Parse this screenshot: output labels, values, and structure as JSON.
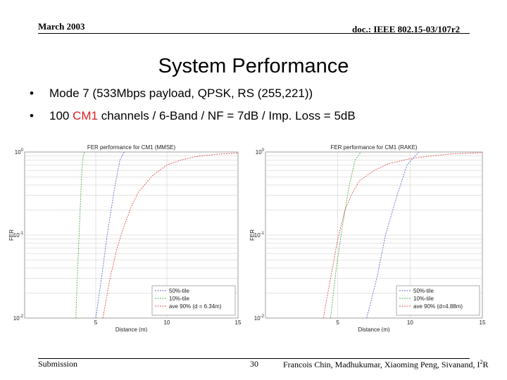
{
  "header": {
    "date": "March 2003",
    "doc_id": "doc.: IEEE 802.15-03/107r2"
  },
  "slide": {
    "title": "System Performance",
    "bullets": [
      {
        "marker": "•",
        "text": "Mode 7 (533Mbps payload, QPSK, RS (255,221))"
      },
      {
        "marker": "•",
        "prefix": "100 ",
        "highlight": "CM1",
        "suffix": " channels / 6-Band / NF = 7dB / Imp. Loss = 5dB"
      }
    ]
  },
  "colors": {
    "highlight": "#d62020",
    "series_green": "#4caf50",
    "series_blue": "#5a6ad8",
    "series_red": "#e05050"
  },
  "chart_data": [
    {
      "type": "line",
      "title": "FER performance for CM1 (MMSE)",
      "xlabel": "Distance (m)",
      "ylabel": "FER",
      "y_scale": "log",
      "xlim": [
        0,
        15
      ],
      "ylim": [
        0.01,
        1
      ],
      "x_ticks": [
        "5",
        "10",
        "15"
      ],
      "y_ticks": [
        "10^0",
        "10^-1",
        "10^-2"
      ],
      "legend_position": "bottom-right",
      "series": [
        {
          "name": "50%-tile",
          "color": "#5a6ad8",
          "x": [
            5.0,
            5.4,
            5.8,
            6.3,
            6.7,
            7.0
          ],
          "y": [
            0.01,
            0.03,
            0.1,
            0.35,
            0.8,
            1.0
          ]
        },
        {
          "name": "10%-tile",
          "color": "#4caf50",
          "x": [
            3.6,
            3.75,
            3.9,
            4.0,
            4.1,
            4.2
          ],
          "y": [
            0.01,
            0.05,
            0.2,
            0.5,
            0.85,
            1.0
          ]
        },
        {
          "name": "ave 90% (d = 6.34m)",
          "color": "#e05050",
          "x": [
            5.5,
            6.0,
            6.5,
            7.0,
            7.5,
            8.0,
            9.0,
            10.0,
            11.0,
            12.0,
            13.5,
            15.0
          ],
          "y": [
            0.01,
            0.03,
            0.07,
            0.13,
            0.22,
            0.33,
            0.52,
            0.7,
            0.8,
            0.88,
            0.94,
            0.97
          ]
        }
      ]
    },
    {
      "type": "line",
      "title": "FER performance for CM1 (RAKE)",
      "xlabel": "Distance (m)",
      "ylabel": "FER",
      "y_scale": "log",
      "xlim": [
        0,
        15
      ],
      "ylim": [
        0.01,
        1
      ],
      "x_ticks": [
        "5",
        "10",
        "15"
      ],
      "y_ticks": [
        "10^0",
        "10^-1",
        "10^-2"
      ],
      "legend_position": "bottom-right",
      "series": [
        {
          "name": "50%-tile",
          "color": "#5a6ad8",
          "x": [
            7.0,
            7.7,
            8.3,
            9.1,
            9.8,
            10.6
          ],
          "y": [
            0.01,
            0.03,
            0.1,
            0.3,
            0.7,
            1.0
          ]
        },
        {
          "name": "10%-tile",
          "color": "#4caf50",
          "x": [
            4.5,
            4.9,
            5.3,
            5.8,
            6.2,
            6.6
          ],
          "y": [
            0.01,
            0.04,
            0.12,
            0.4,
            0.8,
            1.0
          ]
        },
        {
          "name": "ave 90% (d=4.88m)",
          "color": "#e05050",
          "x": [
            4.0,
            4.5,
            5.0,
            5.5,
            6.0,
            6.5,
            7.5,
            8.5,
            10.0,
            11.5,
            13.0,
            15.0
          ],
          "y": [
            0.01,
            0.03,
            0.09,
            0.2,
            0.32,
            0.45,
            0.6,
            0.72,
            0.83,
            0.9,
            0.95,
            0.98
          ]
        }
      ]
    }
  ],
  "footer": {
    "left": "Submission",
    "page": "30",
    "authors": "Francois Chin, Madhukumar, Xiaoming Peng, Sivanand, I",
    "authors_sup": "2",
    "authors_tail": "R"
  }
}
